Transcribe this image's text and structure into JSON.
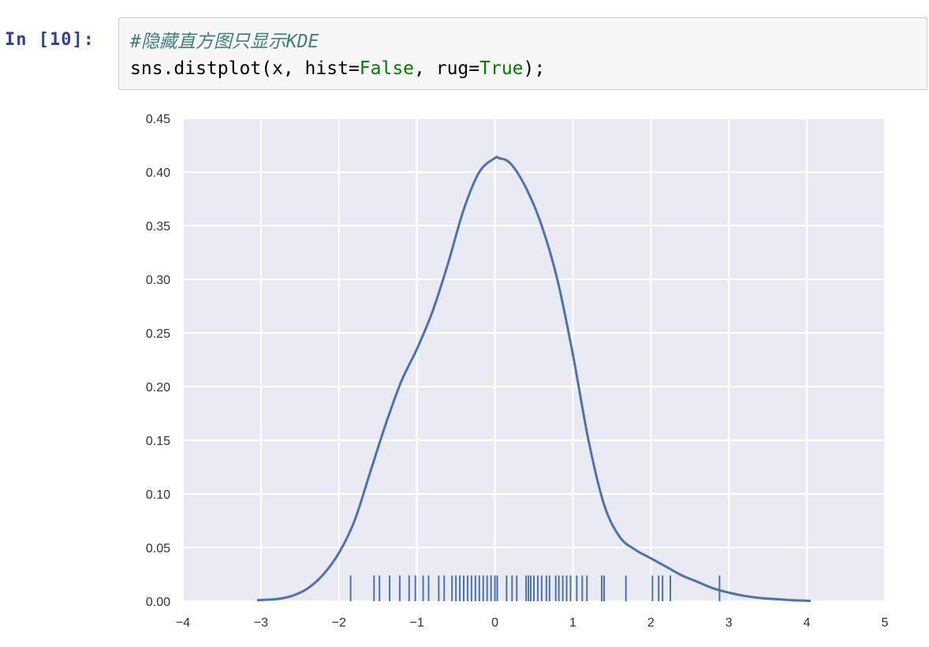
{
  "notebook": {
    "prompt": "In [10]:",
    "code": {
      "comment": "#隐藏直方图只显示KDE",
      "line2_prefix": "sns.distplot(x, hist=",
      "hist_value": "False",
      "line2_mid": ", rug=",
      "rug_value": "True",
      "line2_suffix": ");"
    }
  },
  "colors": {
    "plot_bg": "#eaeaf2",
    "grid": "#ffffff",
    "series": "#4c72b0",
    "prompt": "#303f9f",
    "comment": "#408080",
    "keyword_value": "#008000"
  },
  "chart_data": {
    "type": "line",
    "title": "",
    "xlabel": "",
    "ylabel": "",
    "xlim": [
      -4,
      5
    ],
    "ylim": [
      0.0,
      0.45
    ],
    "grid": true,
    "x_ticks": [
      -4,
      -3,
      -2,
      -1,
      0,
      1,
      2,
      3,
      4,
      5
    ],
    "x_tick_labels": [
      "−4",
      "−3",
      "−2",
      "−1",
      "0",
      "1",
      "2",
      "3",
      "4",
      "5"
    ],
    "y_ticks": [
      0.0,
      0.05,
      0.1,
      0.15,
      0.2,
      0.25,
      0.3,
      0.35,
      0.4,
      0.45
    ],
    "y_tick_labels": [
      "0.00",
      "0.05",
      "0.10",
      "0.15",
      "0.20",
      "0.25",
      "0.30",
      "0.35",
      "0.40",
      "0.45"
    ],
    "kde": {
      "x": [
        -3.05,
        -2.8,
        -2.6,
        -2.4,
        -2.2,
        -2.0,
        -1.8,
        -1.6,
        -1.4,
        -1.2,
        -1.0,
        -0.8,
        -0.6,
        -0.4,
        -0.2,
        0.0,
        0.05,
        0.2,
        0.4,
        0.6,
        0.8,
        1.0,
        1.2,
        1.4,
        1.6,
        1.8,
        2.0,
        2.2,
        2.4,
        2.6,
        2.8,
        3.0,
        3.2,
        3.4,
        3.6,
        3.8,
        4.0,
        4.05
      ],
      "y": [
        0.001,
        0.002,
        0.005,
        0.012,
        0.025,
        0.045,
        0.075,
        0.12,
        0.165,
        0.205,
        0.235,
        0.27,
        0.315,
        0.365,
        0.4,
        0.413,
        0.413,
        0.408,
        0.385,
        0.35,
        0.3,
        0.23,
        0.15,
        0.09,
        0.06,
        0.048,
        0.04,
        0.032,
        0.024,
        0.018,
        0.012,
        0.008,
        0.005,
        0.003,
        0.002,
        0.001,
        0.0005,
        0.0003
      ]
    },
    "rug": {
      "height": 0.024,
      "x": [
        -1.85,
        -1.55,
        -1.48,
        -1.35,
        -1.22,
        -1.1,
        -1.02,
        -0.92,
        -0.85,
        -0.72,
        -0.65,
        -0.55,
        -0.5,
        -0.45,
        -0.4,
        -0.35,
        -0.3,
        -0.25,
        -0.2,
        -0.15,
        -0.1,
        -0.05,
        0.0,
        0.03,
        0.15,
        0.22,
        0.28,
        0.4,
        0.43,
        0.46,
        0.5,
        0.55,
        0.6,
        0.66,
        0.7,
        0.78,
        0.82,
        0.87,
        0.92,
        0.97,
        1.05,
        1.12,
        1.18,
        1.37,
        1.4,
        1.68,
        2.02,
        2.1,
        2.15,
        2.25,
        2.88
      ]
    }
  }
}
